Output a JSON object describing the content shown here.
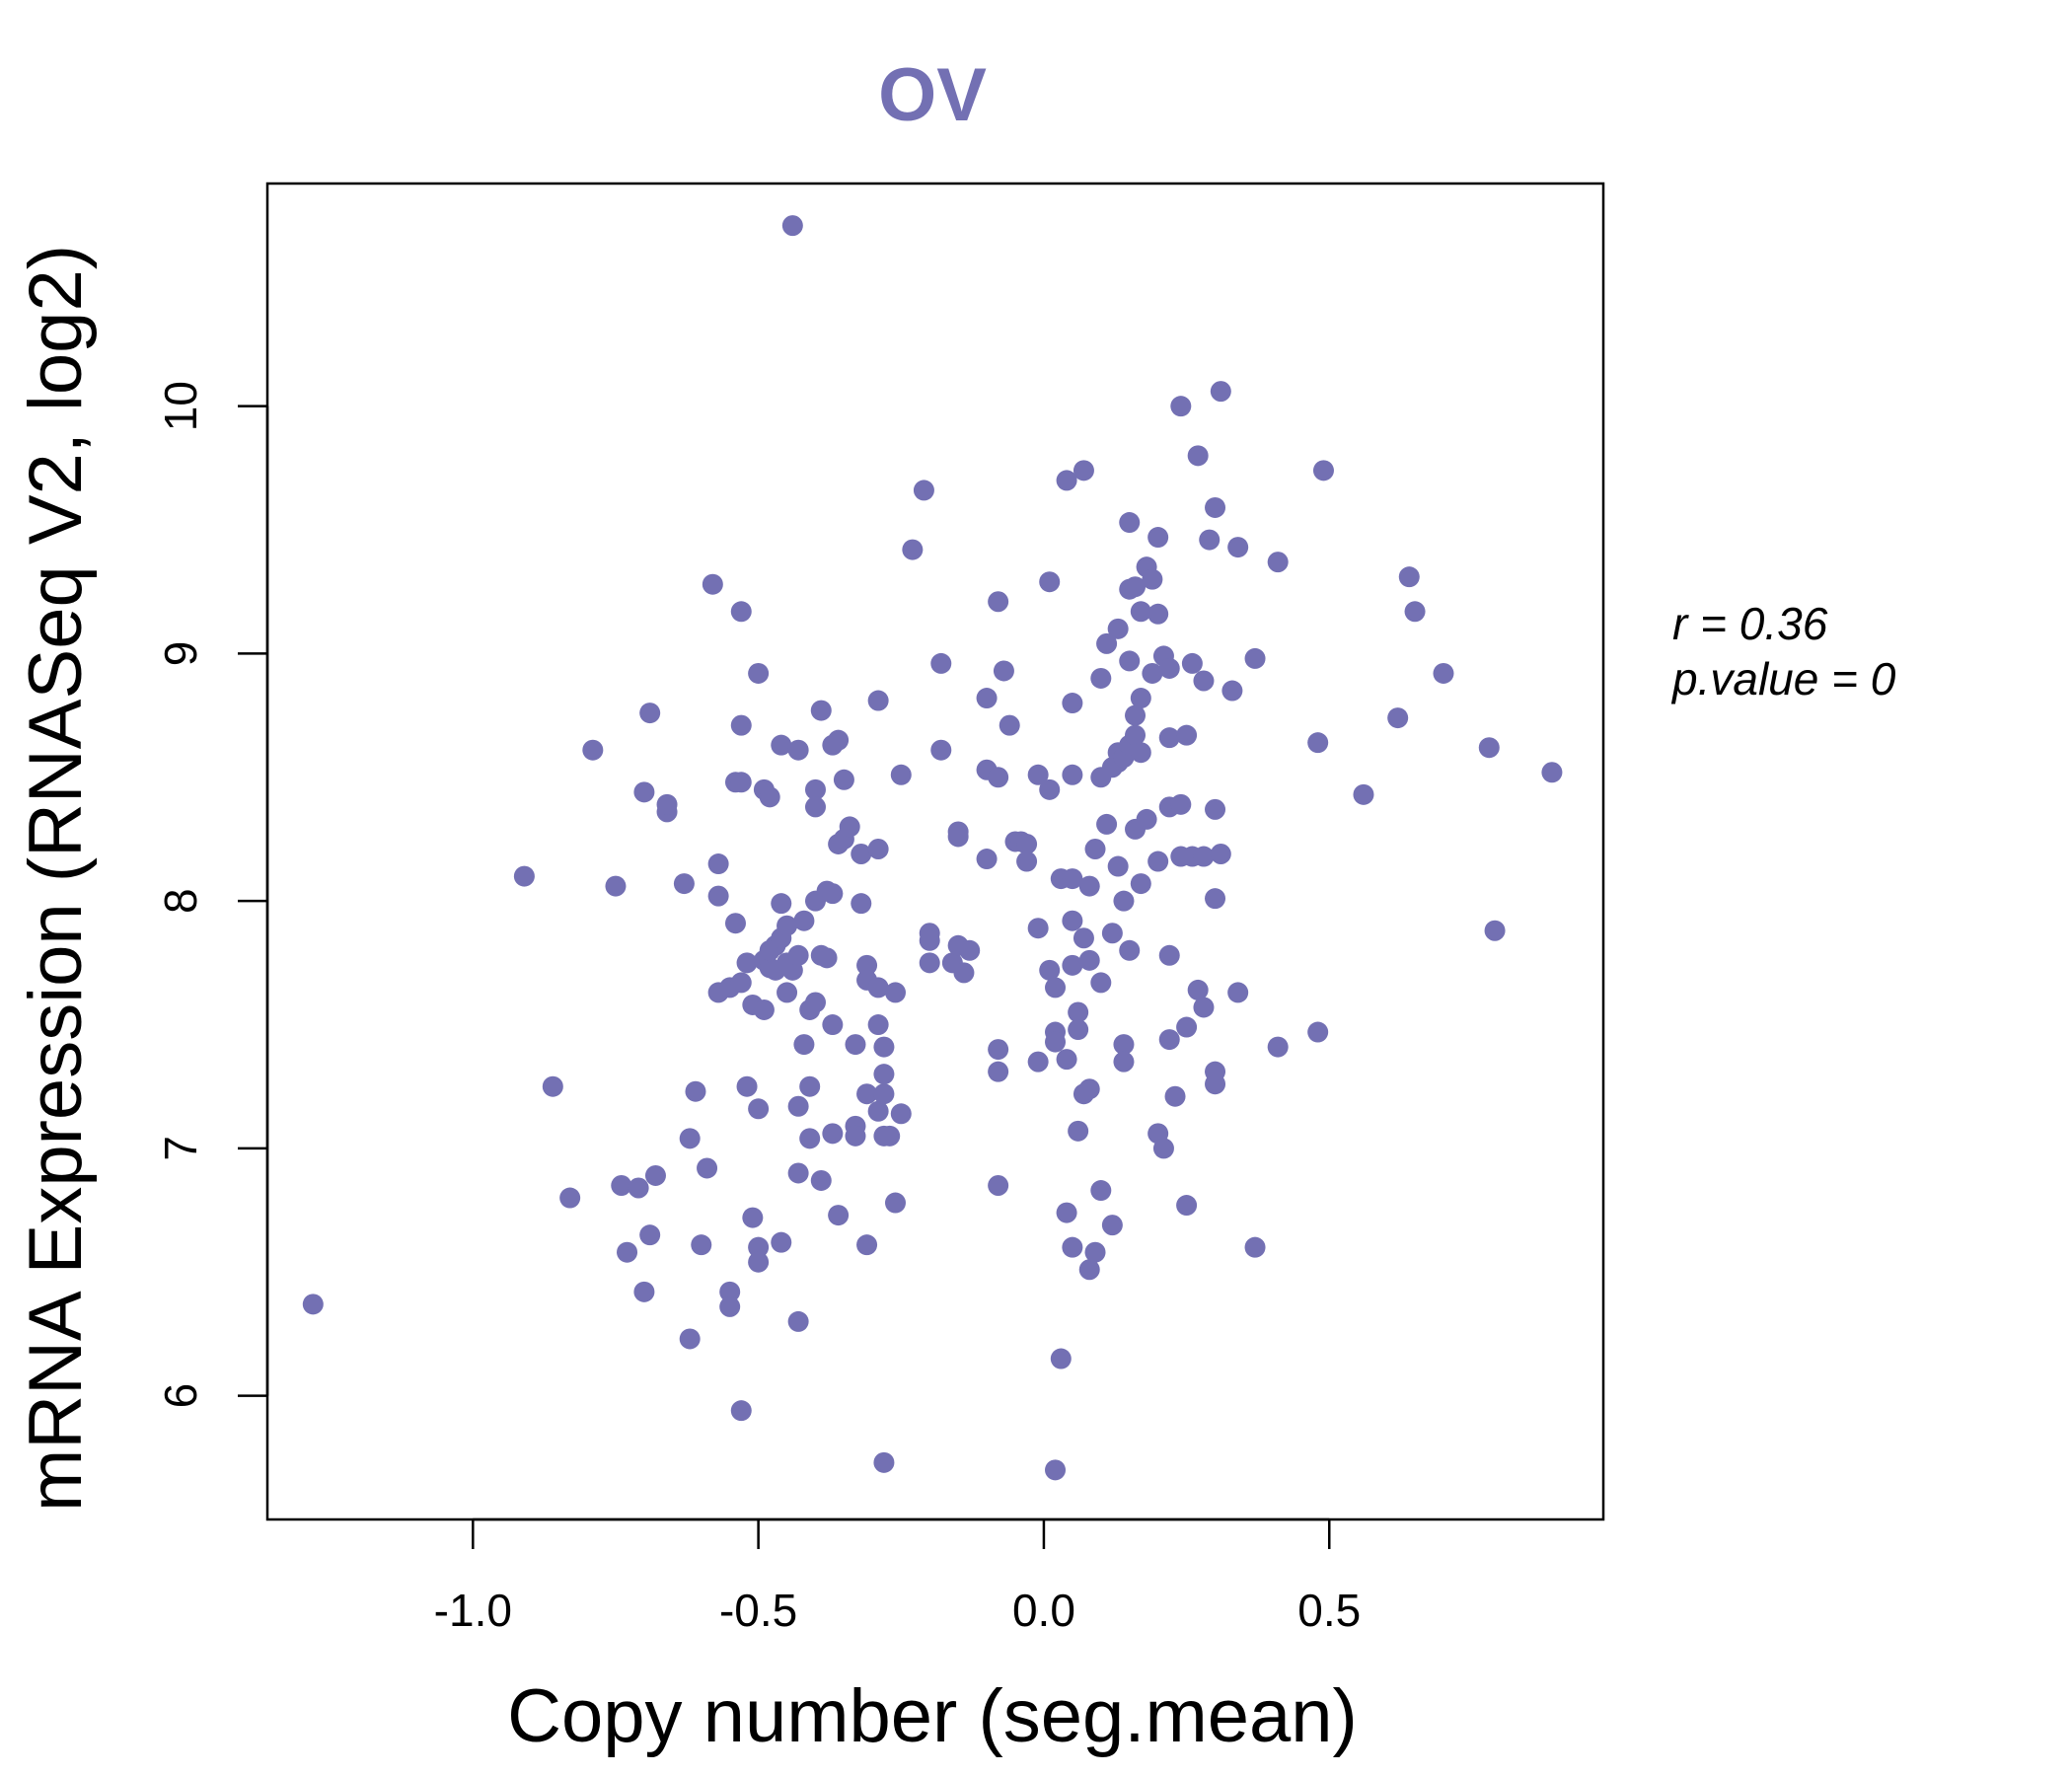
{
  "chart_data": {
    "type": "scatter",
    "title": "OV",
    "xlabel": "Copy number (seg.mean)",
    "ylabel": "mRNA Expression (RNASeq V2, log2)",
    "xlim": [
      -1.36,
      0.98
    ],
    "ylim": [
      5.5,
      10.9
    ],
    "xticks": [
      -1.0,
      -0.5,
      0.0,
      0.5
    ],
    "xtick_labels": [
      "-1.0",
      "-0.5",
      "0.0",
      "0.5"
    ],
    "yticks": [
      6,
      7,
      8,
      9,
      10
    ],
    "ytick_labels": [
      "6",
      "7",
      "8",
      "9",
      "10"
    ],
    "grid": false,
    "legend": "none",
    "point_color": "#7370b3",
    "annotation_r": "r = 0.36",
    "annotation_p": "p.value = 0",
    "points": [
      [
        -1.28,
        6.37
      ],
      [
        -0.91,
        8.1
      ],
      [
        -0.86,
        7.25
      ],
      [
        -0.83,
        6.8
      ],
      [
        -0.79,
        8.61
      ],
      [
        -0.75,
        8.06
      ],
      [
        -0.74,
        6.85
      ],
      [
        -0.73,
        6.58
      ],
      [
        -0.71,
        6.84
      ],
      [
        -0.7,
        8.44
      ],
      [
        -0.7,
        6.42
      ],
      [
        -0.69,
        8.76
      ],
      [
        -0.69,
        6.65
      ],
      [
        -0.68,
        6.89
      ],
      [
        -0.66,
        8.36
      ],
      [
        -0.66,
        8.39
      ],
      [
        -0.63,
        8.07
      ],
      [
        -0.62,
        7.04
      ],
      [
        -0.62,
        6.23
      ],
      [
        -0.61,
        7.23
      ],
      [
        -0.6,
        6.61
      ],
      [
        -0.59,
        6.92
      ],
      [
        -0.58,
        9.28
      ],
      [
        -0.57,
        8.15
      ],
      [
        -0.57,
        7.63
      ],
      [
        -0.57,
        8.02
      ],
      [
        -0.55,
        7.65
      ],
      [
        -0.55,
        6.42
      ],
      [
        -0.55,
        6.36
      ],
      [
        -0.54,
        8.48
      ],
      [
        -0.54,
        7.91
      ],
      [
        -0.53,
        9.17
      ],
      [
        -0.53,
        8.71
      ],
      [
        -0.53,
        8.48
      ],
      [
        -0.53,
        7.67
      ],
      [
        -0.53,
        5.94
      ],
      [
        -0.52,
        7.25
      ],
      [
        -0.52,
        7.75
      ],
      [
        -0.51,
        7.58
      ],
      [
        -0.51,
        6.72
      ],
      [
        -0.5,
        8.92
      ],
      [
        -0.5,
        7.16
      ],
      [
        -0.5,
        6.6
      ],
      [
        -0.5,
        6.54
      ],
      [
        -0.49,
        8.45
      ],
      [
        -0.49,
        7.56
      ],
      [
        -0.49,
        7.76
      ],
      [
        -0.48,
        8.42
      ],
      [
        -0.48,
        7.73
      ],
      [
        -0.48,
        7.8
      ],
      [
        -0.47,
        7.82
      ],
      [
        -0.47,
        7.72
      ],
      [
        -0.46,
        8.63
      ],
      [
        -0.46,
        7.99
      ],
      [
        -0.46,
        7.85
      ],
      [
        -0.46,
        6.62
      ],
      [
        -0.45,
        7.9
      ],
      [
        -0.45,
        7.63
      ],
      [
        -0.45,
        7.75
      ],
      [
        -0.44,
        10.73
      ],
      [
        -0.44,
        7.72
      ],
      [
        -0.43,
        8.61
      ],
      [
        -0.43,
        7.78
      ],
      [
        -0.43,
        7.17
      ],
      [
        -0.43,
        6.9
      ],
      [
        -0.43,
        6.3
      ],
      [
        -0.42,
        7.42
      ],
      [
        -0.42,
        7.92
      ],
      [
        -0.41,
        7.25
      ],
      [
        -0.41,
        7.04
      ],
      [
        -0.41,
        7.56
      ],
      [
        -0.4,
        8.45
      ],
      [
        -0.4,
        8.38
      ],
      [
        -0.4,
        8.0
      ],
      [
        -0.4,
        7.59
      ],
      [
        -0.39,
        8.77
      ],
      [
        -0.39,
        7.78
      ],
      [
        -0.39,
        6.87
      ],
      [
        -0.38,
        8.04
      ],
      [
        -0.38,
        7.77
      ],
      [
        -0.37,
        8.63
      ],
      [
        -0.37,
        8.03
      ],
      [
        -0.37,
        7.5
      ],
      [
        -0.37,
        7.06
      ],
      [
        -0.36,
        8.65
      ],
      [
        -0.36,
        8.23
      ],
      [
        -0.36,
        6.73
      ],
      [
        -0.35,
        8.49
      ],
      [
        -0.35,
        8.25
      ],
      [
        -0.34,
        8.3
      ],
      [
        -0.33,
        7.42
      ],
      [
        -0.33,
        7.09
      ],
      [
        -0.33,
        7.05
      ],
      [
        -0.32,
        8.19
      ],
      [
        -0.32,
        7.99
      ],
      [
        -0.31,
        7.74
      ],
      [
        -0.31,
        7.68
      ],
      [
        -0.31,
        7.22
      ],
      [
        -0.31,
        6.61
      ],
      [
        -0.29,
        8.81
      ],
      [
        -0.29,
        8.21
      ],
      [
        -0.29,
        7.65
      ],
      [
        -0.29,
        7.5
      ],
      [
        -0.29,
        7.15
      ],
      [
        -0.28,
        7.22
      ],
      [
        -0.28,
        7.05
      ],
      [
        -0.28,
        7.3
      ],
      [
        -0.28,
        7.41
      ],
      [
        -0.28,
        5.73
      ],
      [
        -0.27,
        7.05
      ],
      [
        -0.26,
        7.63
      ],
      [
        -0.26,
        6.78
      ],
      [
        -0.25,
        8.51
      ],
      [
        -0.25,
        7.14
      ],
      [
        -0.23,
        9.42
      ],
      [
        -0.21,
        9.66
      ],
      [
        -0.2,
        7.87
      ],
      [
        -0.2,
        7.84
      ],
      [
        -0.2,
        7.75
      ],
      [
        -0.18,
        8.96
      ],
      [
        -0.18,
        8.61
      ],
      [
        -0.16,
        7.75
      ],
      [
        -0.15,
        8.28
      ],
      [
        -0.15,
        8.26
      ],
      [
        -0.15,
        7.82
      ],
      [
        -0.14,
        7.71
      ],
      [
        -0.13,
        7.8
      ],
      [
        -0.1,
        8.82
      ],
      [
        -0.1,
        8.53
      ],
      [
        -0.1,
        8.17
      ],
      [
        -0.08,
        9.21
      ],
      [
        -0.08,
        8.5
      ],
      [
        -0.08,
        7.4
      ],
      [
        -0.08,
        7.31
      ],
      [
        -0.08,
        6.85
      ],
      [
        -0.07,
        8.93
      ],
      [
        -0.06,
        8.71
      ],
      [
        -0.05,
        8.24
      ],
      [
        -0.04,
        8.24
      ],
      [
        -0.03,
        8.23
      ],
      [
        -0.03,
        8.16
      ],
      [
        -0.01,
        8.51
      ],
      [
        -0.01,
        7.89
      ],
      [
        -0.01,
        7.35
      ],
      [
        0.01,
        9.29
      ],
      [
        0.01,
        8.45
      ],
      [
        0.01,
        7.72
      ],
      [
        0.02,
        7.65
      ],
      [
        0.02,
        7.47
      ],
      [
        0.02,
        7.43
      ],
      [
        0.02,
        5.7
      ],
      [
        0.03,
        8.09
      ],
      [
        0.03,
        6.15
      ],
      [
        0.04,
        9.7
      ],
      [
        0.04,
        7.36
      ],
      [
        0.04,
        6.74
      ],
      [
        0.05,
        8.8
      ],
      [
        0.05,
        8.51
      ],
      [
        0.05,
        8.09
      ],
      [
        0.05,
        7.92
      ],
      [
        0.05,
        7.74
      ],
      [
        0.05,
        6.6
      ],
      [
        0.06,
        7.55
      ],
      [
        0.06,
        7.48
      ],
      [
        0.06,
        7.07
      ],
      [
        0.07,
        9.74
      ],
      [
        0.07,
        7.85
      ],
      [
        0.07,
        7.22
      ],
      [
        0.08,
        7.76
      ],
      [
        0.08,
        8.06
      ],
      [
        0.08,
        7.24
      ],
      [
        0.08,
        6.51
      ],
      [
        0.09,
        8.21
      ],
      [
        0.09,
        6.58
      ],
      [
        0.1,
        8.9
      ],
      [
        0.1,
        8.5
      ],
      [
        0.1,
        7.67
      ],
      [
        0.1,
        6.83
      ],
      [
        0.11,
        9.04
      ],
      [
        0.11,
        8.31
      ],
      [
        0.12,
        8.54
      ],
      [
        0.12,
        7.87
      ],
      [
        0.12,
        6.69
      ],
      [
        0.13,
        9.1
      ],
      [
        0.13,
        8.6
      ],
      [
        0.13,
        8.56
      ],
      [
        0.13,
        8.14
      ],
      [
        0.14,
        8.58
      ],
      [
        0.14,
        8.0
      ],
      [
        0.14,
        7.42
      ],
      [
        0.14,
        7.35
      ],
      [
        0.15,
        9.53
      ],
      [
        0.15,
        9.26
      ],
      [
        0.15,
        8.97
      ],
      [
        0.15,
        8.63
      ],
      [
        0.15,
        7.8
      ],
      [
        0.16,
        9.27
      ],
      [
        0.16,
        8.75
      ],
      [
        0.16,
        8.67
      ],
      [
        0.16,
        8.29
      ],
      [
        0.17,
        8.82
      ],
      [
        0.17,
        8.6
      ],
      [
        0.17,
        8.07
      ],
      [
        0.17,
        9.17
      ],
      [
        0.18,
        9.35
      ],
      [
        0.18,
        8.33
      ],
      [
        0.19,
        9.3
      ],
      [
        0.19,
        8.92
      ],
      [
        0.2,
        9.47
      ],
      [
        0.2,
        9.16
      ],
      [
        0.2,
        8.16
      ],
      [
        0.2,
        7.06
      ],
      [
        0.21,
        7.0
      ],
      [
        0.21,
        8.99
      ],
      [
        0.22,
        8.94
      ],
      [
        0.22,
        8.66
      ],
      [
        0.22,
        8.38
      ],
      [
        0.22,
        7.78
      ],
      [
        0.22,
        7.44
      ],
      [
        0.23,
        7.21
      ],
      [
        0.24,
        10.0
      ],
      [
        0.24,
        8.39
      ],
      [
        0.24,
        8.18
      ],
      [
        0.25,
        7.49
      ],
      [
        0.25,
        6.77
      ],
      [
        0.25,
        8.67
      ],
      [
        0.26,
        8.96
      ],
      [
        0.26,
        8.18
      ],
      [
        0.27,
        9.8
      ],
      [
        0.27,
        7.64
      ],
      [
        0.28,
        8.89
      ],
      [
        0.28,
        8.18
      ],
      [
        0.28,
        7.57
      ],
      [
        0.29,
        9.46
      ],
      [
        0.3,
        9.59
      ],
      [
        0.3,
        8.37
      ],
      [
        0.3,
        8.01
      ],
      [
        0.3,
        7.31
      ],
      [
        0.3,
        7.26
      ],
      [
        0.31,
        10.06
      ],
      [
        0.31,
        8.19
      ],
      [
        0.33,
        8.85
      ],
      [
        0.34,
        9.43
      ],
      [
        0.34,
        7.63
      ],
      [
        0.37,
        8.98
      ],
      [
        0.37,
        6.6
      ],
      [
        0.41,
        9.37
      ],
      [
        0.41,
        7.41
      ],
      [
        0.48,
        8.64
      ],
      [
        0.48,
        7.47
      ],
      [
        0.49,
        9.74
      ],
      [
        0.56,
        8.43
      ],
      [
        0.62,
        8.74
      ],
      [
        0.64,
        9.31
      ],
      [
        0.65,
        9.17
      ],
      [
        0.7,
        8.92
      ],
      [
        0.78,
        8.62
      ],
      [
        0.79,
        7.88
      ],
      [
        0.89,
        8.52
      ]
    ]
  }
}
